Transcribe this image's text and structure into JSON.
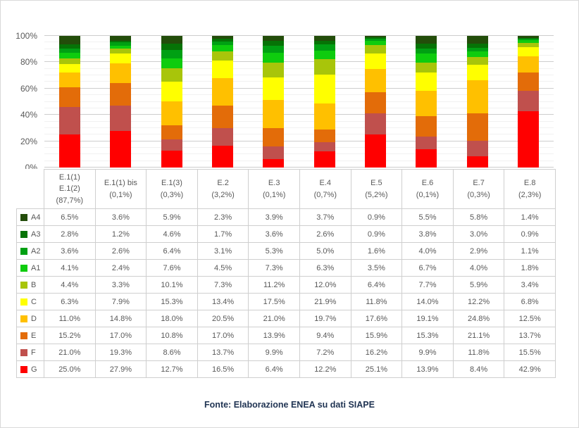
{
  "chart_data": {
    "type": "bar",
    "stacked": true,
    "title": "",
    "xlabel": "",
    "ylabel": "",
    "ylim": [
      0,
      100
    ],
    "yticks": [
      "0%",
      "20%",
      "40%",
      "60%",
      "80%",
      "100%"
    ],
    "grid": {
      "major_step": 20,
      "minor_step": 5,
      "major_color": "#cdcdcd",
      "minor_color": "#f1f1f1"
    },
    "legend_position": "table-left-column",
    "value_suffix": "%",
    "categories": [
      {
        "id": "E1-1-E1-2",
        "label_lines": [
          "E.1(1)",
          "E.1(2)",
          "(87,7%)"
        ]
      },
      {
        "id": "E1-1-bis",
        "label_lines": [
          "E.1(1) bis",
          "(0,1%)"
        ]
      },
      {
        "id": "E1-3",
        "label_lines": [
          "E.1(3)",
          "(0,3%)"
        ]
      },
      {
        "id": "E2",
        "label_lines": [
          "E.2",
          "(3,2%)"
        ]
      },
      {
        "id": "E3",
        "label_lines": [
          "E.3",
          "(0,1%)"
        ]
      },
      {
        "id": "E4",
        "label_lines": [
          "E.4",
          "(0,7%)"
        ]
      },
      {
        "id": "E5",
        "label_lines": [
          "E.5",
          "(5,2%)"
        ]
      },
      {
        "id": "E6",
        "label_lines": [
          "E.6",
          "(0,1%)"
        ]
      },
      {
        "id": "E7",
        "label_lines": [
          "E.7",
          "(0,3%)"
        ]
      },
      {
        "id": "E8",
        "label_lines": [
          "E.8",
          "(2,3%)"
        ]
      }
    ],
    "series": [
      {
        "name": "A4",
        "color": "#234d0a",
        "values": [
          6.5,
          3.6,
          5.9,
          2.3,
          3.9,
          3.7,
          0.9,
          5.5,
          5.8,
          1.4
        ]
      },
      {
        "name": "A3",
        "color": "#067306",
        "values": [
          2.8,
          1.2,
          4.6,
          1.7,
          3.6,
          2.6,
          0.9,
          3.8,
          3.0,
          0.9
        ]
      },
      {
        "name": "A2",
        "color": "#00a013",
        "values": [
          3.6,
          2.6,
          6.4,
          3.1,
          5.3,
          5.0,
          1.6,
          4.0,
          2.9,
          1.1
        ]
      },
      {
        "name": "A1",
        "color": "#0ecc0e",
        "values": [
          4.1,
          2.4,
          7.6,
          4.5,
          7.3,
          6.3,
          3.5,
          6.7,
          4.0,
          1.8
        ]
      },
      {
        "name": "B",
        "color": "#a8c50a",
        "values": [
          4.4,
          3.3,
          10.1,
          7.3,
          11.2,
          12.0,
          6.4,
          7.7,
          5.9,
          3.4
        ]
      },
      {
        "name": "C",
        "color": "#ffff00",
        "values": [
          6.3,
          7.9,
          15.3,
          13.4,
          17.5,
          21.9,
          11.8,
          14.0,
          12.2,
          6.8
        ]
      },
      {
        "name": "D",
        "color": "#ffc000",
        "values": [
          11.0,
          14.8,
          18.0,
          20.5,
          21.0,
          19.7,
          17.6,
          19.1,
          24.8,
          12.5
        ]
      },
      {
        "name": "E",
        "color": "#e36c09",
        "values": [
          15.2,
          17.0,
          10.8,
          17.0,
          13.9,
          9.4,
          15.9,
          15.3,
          21.1,
          13.7
        ]
      },
      {
        "name": "F",
        "color": "#c0504d",
        "values": [
          21.0,
          19.3,
          8.6,
          13.7,
          9.9,
          7.2,
          16.2,
          9.9,
          11.8,
          15.5
        ]
      },
      {
        "name": "G",
        "color": "#ff0000",
        "values": [
          25.0,
          27.9,
          12.7,
          16.5,
          6.4,
          12.2,
          25.1,
          13.9,
          8.4,
          42.9
        ]
      }
    ]
  },
  "table": {
    "border_color": "#cfcfcf",
    "text_color": "#595959"
  },
  "footer": {
    "source_note": "Fonte: Elaborazione ENEA su dati SIAPE",
    "color": "#1f3352"
  }
}
